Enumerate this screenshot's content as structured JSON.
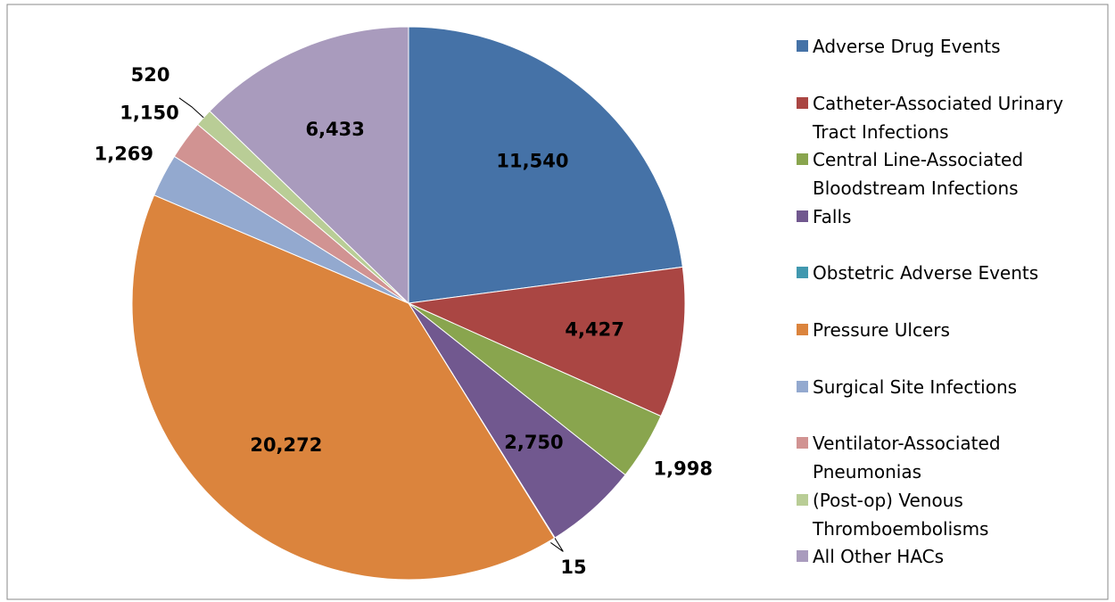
{
  "chart_data": {
    "type": "pie",
    "categories": [
      "Adverse Drug Events",
      "Catheter-Associated Urinary Tract Infections",
      "Central Line-Associated Bloodstream Infections",
      "Falls",
      "Obstetric Adverse Events",
      "Pressure Ulcers",
      "Surgical Site Infections",
      "Ventilator-Associated Pneumonias",
      "(Post-op) Venous Thromboembolisms",
      "All Other HACs"
    ],
    "values": [
      11540,
      4427,
      1998,
      2750,
      15,
      20272,
      1269,
      1150,
      520,
      6433
    ],
    "value_labels": [
      "11,540",
      "4,427",
      "1,998",
      "2,750",
      "15",
      "20,272",
      "1,269",
      "1,150",
      "520",
      "6,433"
    ],
    "colors": [
      "#4572a7",
      "#aa4643",
      "#89a54e",
      "#71588f",
      "#4198af",
      "#db843d",
      "#93a9cf",
      "#d19392",
      "#b9cd96",
      "#a99bbd"
    ],
    "legend": "right"
  }
}
